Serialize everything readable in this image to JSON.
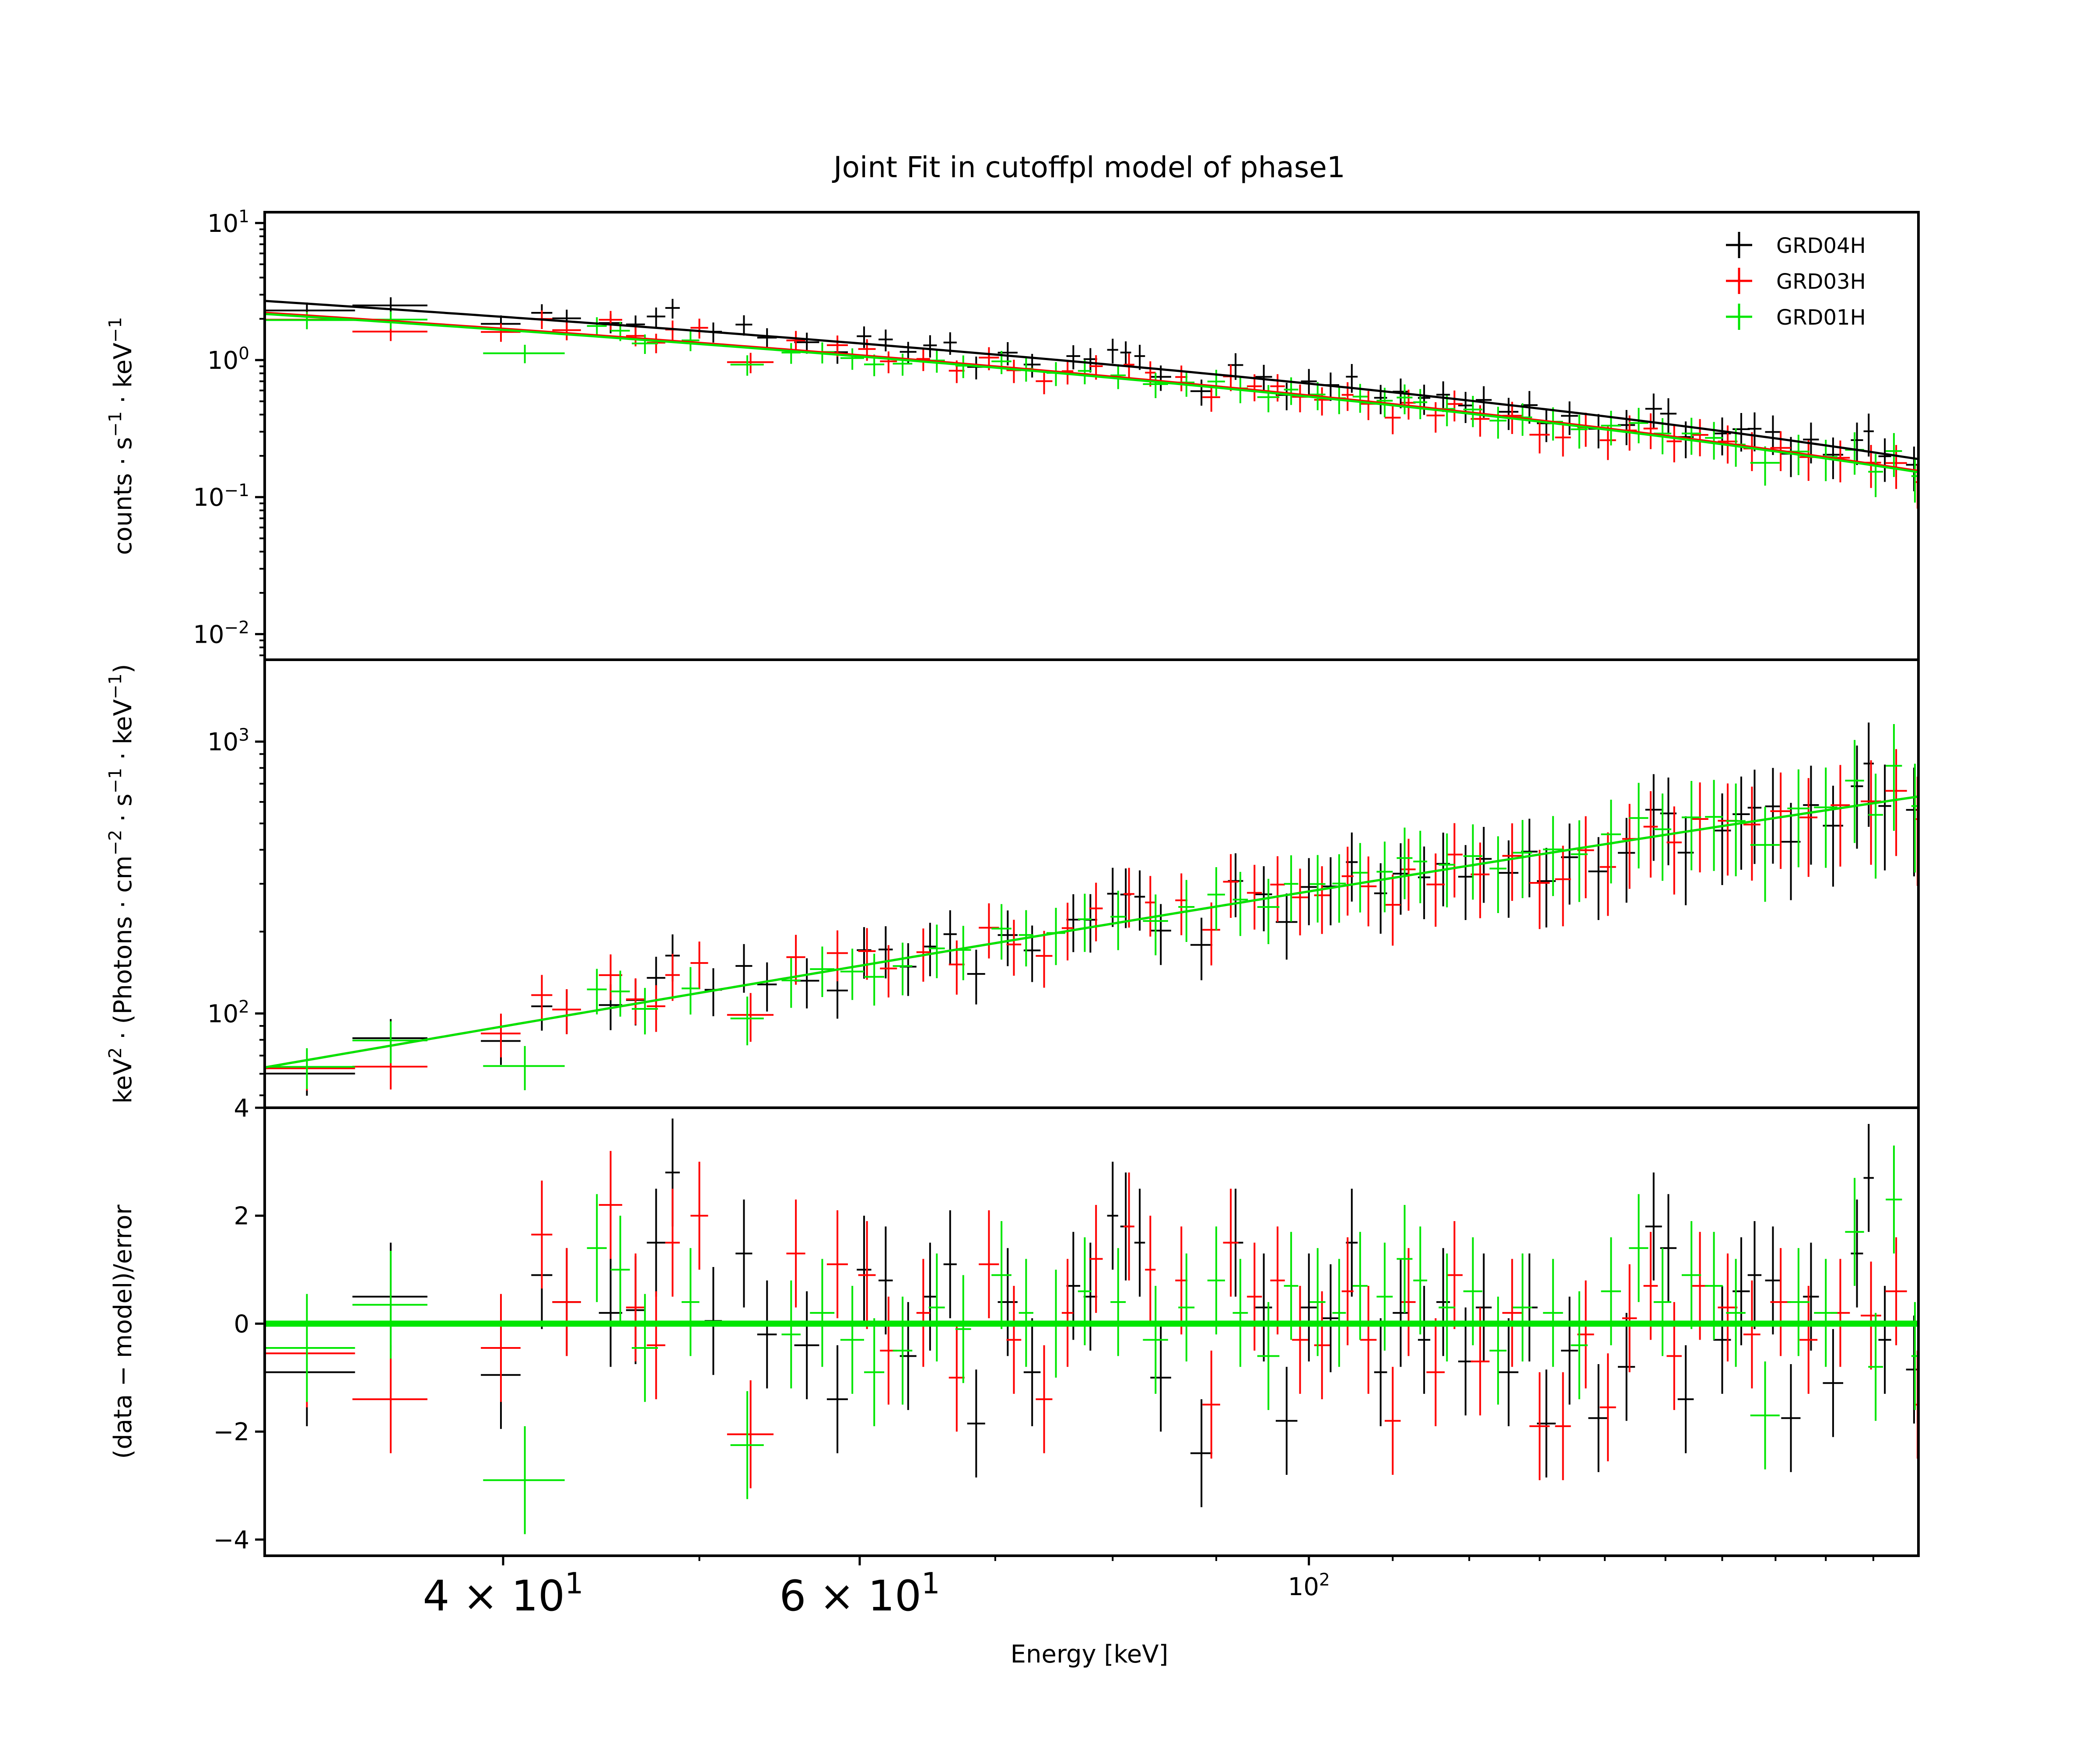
{
  "chart_data": {
    "type": "scatter",
    "title": "Joint Fit  in cutoffpl model of phase1",
    "xlabel": "Energy [keV]",
    "xscale": "log",
    "xlim": [
      30.5,
      200
    ],
    "x_ticks": [
      {
        "value": 40,
        "mant": "4 × 10",
        "exp": "1"
      },
      {
        "value": 60,
        "mant": "6 × 10",
        "exp": "1"
      },
      {
        "value": 100,
        "mant": "10",
        "exp": "2"
      }
    ],
    "legend": [
      {
        "name": "GRD04H",
        "color": "#000000"
      },
      {
        "name": "GRD03H",
        "color": "#ff0000"
      },
      {
        "name": "GRD01H",
        "color": "#00e600"
      }
    ],
    "panels": [
      {
        "name": "counts",
        "ylabel_parts": [
          "counts · s",
          "−1",
          " · keV",
          "−1"
        ],
        "yscale": "log",
        "ylim": [
          0.0065,
          12
        ],
        "yticks": [
          {
            "value": 10,
            "mant": "10",
            "exp": "1"
          },
          {
            "value": 1,
            "mant": "10",
            "exp": "0"
          },
          {
            "value": 0.1,
            "mant": "10",
            "exp": "−1"
          },
          {
            "value": 0.01,
            "mant": "10",
            "exp": "−2"
          }
        ],
        "model": {
          "at30": 2.25,
          "slope": -0.72,
          "cutoff": 130,
          "offsets": [
            1.22,
            1.0,
            0.98
          ]
        }
      },
      {
        "name": "eeuf",
        "ylabel_parts": [
          "keV",
          "2",
          " · (Photons · cm",
          "−2",
          " · s",
          "−1",
          " · keV",
          "−1",
          ")"
        ],
        "yscale": "log",
        "ylim": [
          45,
          2000
        ],
        "yticks": [
          {
            "value": 1000,
            "mant": "10",
            "exp": "3"
          },
          {
            "value": 100,
            "mant": "10",
            "exp": "2"
          }
        ],
        "model": {
          "at30": 62,
          "slope": 1.32,
          "cutoff": 900
        }
      },
      {
        "name": "residuals",
        "ylabel_parts": [
          "(data − model)/error"
        ],
        "yscale": "linear",
        "ylim": [
          -4.3,
          4.0
        ],
        "yticks": [
          {
            "value": 4,
            "label": "4"
          },
          {
            "value": 2,
            "label": "2"
          },
          {
            "value": 0,
            "label": "0"
          },
          {
            "value": -2,
            "label": "−2"
          },
          {
            "value": -4,
            "label": "−4"
          }
        ]
      }
    ],
    "series": [
      {
        "name": "GRD04H",
        "color": "#000000",
        "points": [
          {
            "e": 32.0,
            "w": 1.8,
            "r": -0.9
          },
          {
            "e": 35.2,
            "w": 1.5,
            "r": 0.5
          },
          {
            "e": 39.9,
            "w": 0.9,
            "r": -0.95
          },
          {
            "e": 41.8,
            "w": 0.5,
            "r": 0.9
          },
          {
            "e": 43.0,
            "w": 0.7,
            "r": 0.4
          },
          {
            "e": 45.2,
            "w": 0.6,
            "r": 0.2
          },
          {
            "e": 46.5,
            "w": 0.5,
            "r": 0.25
          },
          {
            "e": 47.6,
            "w": 0.5,
            "r": 1.5
          },
          {
            "e": 48.5,
            "w": 0.4,
            "r": 2.8
          },
          {
            "e": 50.8,
            "w": 0.5,
            "r": 0.05
          },
          {
            "e": 52.6,
            "w": 0.5,
            "r": 1.3
          },
          {
            "e": 54.0,
            "w": 0.6,
            "r": -0.2
          },
          {
            "e": 56.5,
            "w": 0.8,
            "r": -0.4
          },
          {
            "e": 58.5,
            "w": 0.7,
            "r": -1.4
          },
          {
            "e": 60.3,
            "w": 0.5,
            "r": 1.0
          },
          {
            "e": 61.8,
            "w": 0.5,
            "r": 0.8
          },
          {
            "e": 63.4,
            "w": 0.6,
            "r": -0.6
          },
          {
            "e": 65.0,
            "w": 0.5,
            "r": 0.5
          },
          {
            "e": 66.5,
            "w": 0.5,
            "r": 1.1
          },
          {
            "e": 68.5,
            "w": 0.7,
            "r": -1.85
          },
          {
            "e": 71.0,
            "w": 0.8,
            "r": 0.4
          },
          {
            "e": 73.0,
            "w": 0.7,
            "r": -0.9
          },
          {
            "e": 76.5,
            "w": 0.6,
            "r": 0.7
          },
          {
            "e": 78.0,
            "w": 0.6,
            "r": 0.5
          },
          {
            "e": 80.0,
            "w": 0.5,
            "r": 2.0
          },
          {
            "e": 81.2,
            "w": 0.5,
            "r": 1.8
          },
          {
            "e": 82.5,
            "w": 0.5,
            "r": 1.5
          },
          {
            "e": 84.5,
            "w": 1.0,
            "r": -1.0
          },
          {
            "e": 88.5,
            "w": 1.1,
            "r": -2.4
          },
          {
            "e": 92.0,
            "w": 0.8,
            "r": 1.5
          },
          {
            "e": 95.0,
            "w": 0.9,
            "r": 0.3
          },
          {
            "e": 97.5,
            "w": 1.2,
            "r": -1.8
          },
          {
            "e": 100.0,
            "w": 0.9,
            "r": 0.3
          },
          {
            "e": 102.5,
            "w": 1.0,
            "r": 0.1
          },
          {
            "e": 105.0,
            "w": 0.7,
            "r": 1.5
          },
          {
            "e": 108.5,
            "w": 0.8,
            "r": -0.9
          },
          {
            "e": 111.0,
            "w": 1.0,
            "r": 0.2
          },
          {
            "e": 114.0,
            "w": 0.8,
            "r": -0.3
          },
          {
            "e": 116.5,
            "w": 0.9,
            "r": 0.4
          },
          {
            "e": 119.5,
            "w": 1.0,
            "r": -0.7
          },
          {
            "e": 122.0,
            "w": 1.1,
            "r": 0.3
          },
          {
            "e": 125.5,
            "w": 1.4,
            "r": -0.9
          },
          {
            "e": 128.5,
            "w": 1.2,
            "r": 0.3
          },
          {
            "e": 131.0,
            "w": 1.4,
            "r": -1.85
          },
          {
            "e": 134.5,
            "w": 1.3,
            "r": -0.5
          },
          {
            "e": 139.0,
            "w": 1.6,
            "r": -1.75
          },
          {
            "e": 143.5,
            "w": 1.4,
            "r": -0.8
          },
          {
            "e": 148.0,
            "w": 1.4,
            "r": 1.8
          },
          {
            "e": 150.5,
            "w": 1.4,
            "r": 1.4
          },
          {
            "e": 153.5,
            "w": 1.4,
            "r": -1.4
          },
          {
            "e": 160.0,
            "w": 1.6,
            "r": -0.3
          },
          {
            "e": 163.5,
            "w": 1.6,
            "r": 0.6
          },
          {
            "e": 166.0,
            "w": 1.3,
            "r": 0.9
          },
          {
            "e": 169.5,
            "w": 1.5,
            "r": 0.8
          },
          {
            "e": 173.0,
            "w": 1.9,
            "r": -1.75
          },
          {
            "e": 177.0,
            "w": 1.6,
            "r": 0.5
          },
          {
            "e": 181.5,
            "w": 2.1,
            "r": -1.1
          },
          {
            "e": 186.5,
            "w": 1.3,
            "r": 1.3
          },
          {
            "e": 189.0,
            "w": 1.1,
            "r": 2.7
          },
          {
            "e": 192.5,
            "w": 1.4,
            "r": -0.3
          },
          {
            "e": 199.0,
            "w": 1.8,
            "r": -0.85
          }
        ]
      },
      {
        "name": "GRD03H",
        "color": "#ff0000",
        "points": [
          {
            "e": 32.0,
            "w": 1.8,
            "r": -0.55
          },
          {
            "e": 35.2,
            "w": 1.5,
            "r": -1.4
          },
          {
            "e": 39.9,
            "w": 0.9,
            "r": -0.45
          },
          {
            "e": 41.8,
            "w": 0.5,
            "r": 1.65
          },
          {
            "e": 43.0,
            "w": 0.7,
            "r": 0.4
          },
          {
            "e": 45.2,
            "w": 0.6,
            "r": 2.2
          },
          {
            "e": 46.5,
            "w": 0.5,
            "r": 0.3
          },
          {
            "e": 47.6,
            "w": 0.5,
            "r": -0.4
          },
          {
            "e": 48.5,
            "w": 0.4,
            "r": 1.5
          },
          {
            "e": 50.0,
            "w": 0.5,
            "r": 2.0
          },
          {
            "e": 53.0,
            "w": 1.4,
            "r": -2.05
          },
          {
            "e": 55.8,
            "w": 0.6,
            "r": 1.3
          },
          {
            "e": 58.5,
            "w": 0.7,
            "r": 1.1
          },
          {
            "e": 60.5,
            "w": 0.6,
            "r": 0.9
          },
          {
            "e": 62.0,
            "w": 0.6,
            "r": -0.5
          },
          {
            "e": 64.5,
            "w": 0.5,
            "r": 0.2
          },
          {
            "e": 67.0,
            "w": 0.6,
            "r": -1.0
          },
          {
            "e": 69.5,
            "w": 0.8,
            "r": 1.1
          },
          {
            "e": 71.5,
            "w": 0.6,
            "r": -0.3
          },
          {
            "e": 74.0,
            "w": 0.7,
            "r": -1.4
          },
          {
            "e": 76.0,
            "w": 0.5,
            "r": 0.2
          },
          {
            "e": 78.5,
            "w": 0.6,
            "r": 1.2
          },
          {
            "e": 81.5,
            "w": 0.5,
            "r": 1.8
          },
          {
            "e": 83.5,
            "w": 0.5,
            "r": 1.0
          },
          {
            "e": 86.5,
            "w": 0.6,
            "r": 0.8
          },
          {
            "e": 89.5,
            "w": 0.9,
            "r": -1.5
          },
          {
            "e": 91.5,
            "w": 0.8,
            "r": 1.5
          },
          {
            "e": 94.0,
            "w": 0.8,
            "r": 0.5
          },
          {
            "e": 96.5,
            "w": 0.8,
            "r": 0.8
          },
          {
            "e": 99.0,
            "w": 0.9,
            "r": -0.3
          },
          {
            "e": 101.5,
            "w": 0.9,
            "r": -0.4
          },
          {
            "e": 104.5,
            "w": 0.7,
            "r": 0.6
          },
          {
            "e": 107.0,
            "w": 1.0,
            "r": -0.3
          },
          {
            "e": 110.0,
            "w": 1.0,
            "r": -1.8
          },
          {
            "e": 112.0,
            "w": 0.9,
            "r": 0.4
          },
          {
            "e": 115.5,
            "w": 1.2,
            "r": -0.9
          },
          {
            "e": 118.0,
            "w": 1.1,
            "r": 0.9
          },
          {
            "e": 121.5,
            "w": 1.3,
            "r": -0.7
          },
          {
            "e": 126.0,
            "w": 1.4,
            "r": 0.2
          },
          {
            "e": 130.0,
            "w": 1.5,
            "r": -1.9
          },
          {
            "e": 133.5,
            "w": 1.2,
            "r": -1.9
          },
          {
            "e": 137.0,
            "w": 1.3,
            "r": -0.2
          },
          {
            "e": 140.5,
            "w": 1.3,
            "r": -1.55
          },
          {
            "e": 144.0,
            "w": 1.2,
            "r": 0.1
          },
          {
            "e": 147.5,
            "w": 1.2,
            "r": 0.7
          },
          {
            "e": 151.5,
            "w": 1.3,
            "r": -0.6
          },
          {
            "e": 156.0,
            "w": 1.5,
            "r": 0.7
          },
          {
            "e": 161.0,
            "w": 1.8,
            "r": 0.3
          },
          {
            "e": 165.5,
            "w": 1.6,
            "r": -0.2
          },
          {
            "e": 171.0,
            "w": 2.0,
            "r": 0.4
          },
          {
            "e": 176.5,
            "w": 1.8,
            "r": -0.3
          },
          {
            "e": 183.0,
            "w": 2.0,
            "r": 0.2
          },
          {
            "e": 189.5,
            "w": 2.2,
            "r": 0.15
          },
          {
            "e": 195.0,
            "w": 2.4,
            "r": 0.6
          },
          {
            "e": 199.8,
            "w": 0.4,
            "r": -1.5
          }
        ]
      },
      {
        "name": "GRD01H",
        "color": "#00e600",
        "points": [
          {
            "e": 32.0,
            "w": 1.8,
            "r": -0.45
          },
          {
            "e": 35.2,
            "w": 1.5,
            "r": 0.35
          },
          {
            "e": 41.0,
            "w": 1.9,
            "r": -2.9
          },
          {
            "e": 44.5,
            "w": 0.5,
            "r": 1.4
          },
          {
            "e": 45.7,
            "w": 0.5,
            "r": 1.0
          },
          {
            "e": 47.0,
            "w": 0.7,
            "r": -0.45
          },
          {
            "e": 49.5,
            "w": 0.5,
            "r": 0.4
          },
          {
            "e": 52.8,
            "w": 1.0,
            "r": -2.25
          },
          {
            "e": 55.5,
            "w": 0.6,
            "r": -0.2
          },
          {
            "e": 57.5,
            "w": 0.8,
            "r": 0.2
          },
          {
            "e": 59.5,
            "w": 0.8,
            "r": -0.3
          },
          {
            "e": 61.0,
            "w": 0.7,
            "r": -0.9
          },
          {
            "e": 63.0,
            "w": 0.7,
            "r": -0.5
          },
          {
            "e": 65.5,
            "w": 0.6,
            "r": 0.3
          },
          {
            "e": 67.5,
            "w": 0.6,
            "r": -0.1
          },
          {
            "e": 70.5,
            "w": 0.8,
            "r": 0.9
          },
          {
            "e": 72.5,
            "w": 0.6,
            "r": 0.2
          },
          {
            "e": 75.0,
            "w": 0.8,
            "r": 0.0
          },
          {
            "e": 77.5,
            "w": 0.6,
            "r": 0.6
          },
          {
            "e": 80.5,
            "w": 0.7,
            "r": 0.4
          },
          {
            "e": 84.0,
            "w": 1.2,
            "r": -0.3
          },
          {
            "e": 87.0,
            "w": 0.8,
            "r": 0.3
          },
          {
            "e": 90.0,
            "w": 0.9,
            "r": 0.8
          },
          {
            "e": 92.5,
            "w": 0.8,
            "r": 0.2
          },
          {
            "e": 95.5,
            "w": 1.2,
            "r": -0.6
          },
          {
            "e": 98.0,
            "w": 0.8,
            "r": 0.7
          },
          {
            "e": 101.0,
            "w": 0.9,
            "r": 0.4
          },
          {
            "e": 103.5,
            "w": 0.8,
            "r": 0.2
          },
          {
            "e": 106.0,
            "w": 0.9,
            "r": 0.7
          },
          {
            "e": 109.0,
            "w": 1.0,
            "r": 0.5
          },
          {
            "e": 111.5,
            "w": 1.0,
            "r": 1.2
          },
          {
            "e": 113.5,
            "w": 0.9,
            "r": 0.8
          },
          {
            "e": 117.0,
            "w": 1.1,
            "r": 0.3
          },
          {
            "e": 120.5,
            "w": 1.3,
            "r": 0.6
          },
          {
            "e": 124.0,
            "w": 1.2,
            "r": -0.5
          },
          {
            "e": 127.5,
            "w": 1.4,
            "r": 0.3
          },
          {
            "e": 132.0,
            "w": 1.5,
            "r": 0.2
          },
          {
            "e": 136.0,
            "w": 1.3,
            "r": -0.4
          },
          {
            "e": 141.0,
            "w": 1.6,
            "r": 0.6
          },
          {
            "e": 145.5,
            "w": 1.6,
            "r": 1.4
          },
          {
            "e": 149.5,
            "w": 1.5,
            "r": 0.4
          },
          {
            "e": 154.5,
            "w": 1.7,
            "r": 0.9
          },
          {
            "e": 158.5,
            "w": 1.6,
            "r": 0.7
          },
          {
            "e": 162.5,
            "w": 1.8,
            "r": 0.2
          },
          {
            "e": 168.0,
            "w": 2.8,
            "r": -1.7
          },
          {
            "e": 174.5,
            "w": 2.2,
            "r": 0.4
          },
          {
            "e": 180.0,
            "w": 2.4,
            "r": 0.2
          },
          {
            "e": 186.0,
            "w": 2.0,
            "r": 1.7
          },
          {
            "e": 190.5,
            "w": 1.6,
            "r": -0.8
          },
          {
            "e": 194.5,
            "w": 1.8,
            "r": 2.3
          },
          {
            "e": 199.2,
            "w": 0.8,
            "r": -0.6
          }
        ]
      }
    ]
  }
}
